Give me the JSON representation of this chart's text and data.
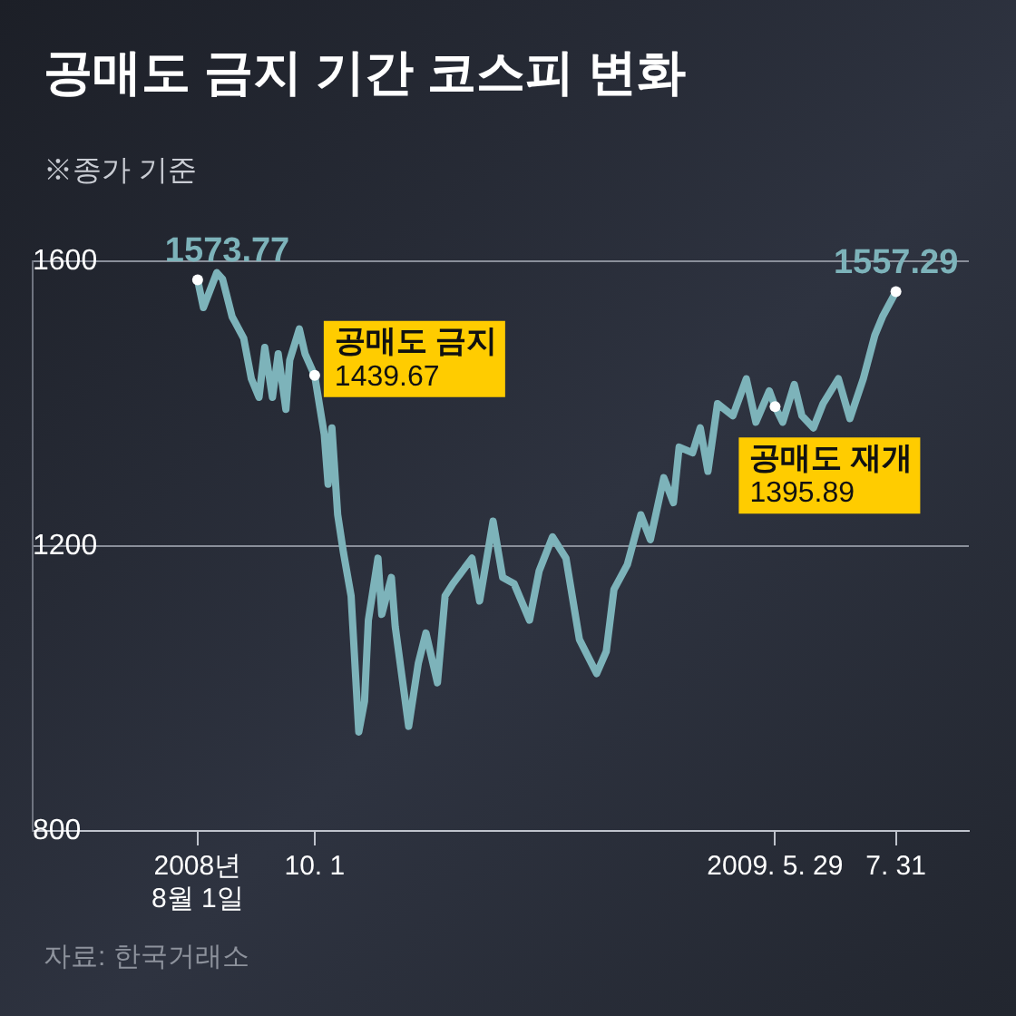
{
  "chart_data": {
    "type": "line",
    "title": "공매도 금지 기간 코스피 변화",
    "subtitle": "※종가 기준",
    "x": [
      "2008-08-01",
      "2008-08-04",
      "2008-08-11",
      "2008-08-14",
      "2008-08-19",
      "2008-08-25",
      "2008-08-29",
      "2008-09-02",
      "2008-09-05",
      "2008-09-09",
      "2008-09-12",
      "2008-09-16",
      "2008-09-18",
      "2008-09-23",
      "2008-09-26",
      "2008-10-01",
      "2008-10-06",
      "2008-10-08",
      "2008-10-10",
      "2008-10-13",
      "2008-10-16",
      "2008-10-20",
      "2008-10-24",
      "2008-10-27",
      "2008-10-29",
      "2008-11-03",
      "2008-11-05",
      "2008-11-10",
      "2008-11-12",
      "2008-11-19",
      "2008-11-24",
      "2008-11-28",
      "2008-12-04",
      "2008-12-08",
      "2008-12-12",
      "2008-12-22",
      "2008-12-26",
      "2009-01-02",
      "2009-01-07",
      "2009-01-13",
      "2009-01-21",
      "2009-01-26",
      "2009-02-02",
      "2009-02-09",
      "2009-02-16",
      "2009-02-25",
      "2009-03-02",
      "2009-03-06",
      "2009-03-13",
      "2009-03-20",
      "2009-03-25",
      "2009-04-01",
      "2009-04-06",
      "2009-04-09",
      "2009-04-16",
      "2009-04-20",
      "2009-04-24",
      "2009-04-29",
      "2009-05-07",
      "2009-05-14",
      "2009-05-19",
      "2009-05-26",
      "2009-05-29",
      "2009-06-02",
      "2009-06-08",
      "2009-06-12",
      "2009-06-18",
      "2009-06-23",
      "2009-07-01",
      "2009-07-07",
      "2009-07-14",
      "2009-07-20",
      "2009-07-24",
      "2009-07-31"
    ],
    "series": [
      {
        "color": "#7db3ba",
        "values": [
          1573.77,
          1535,
          1584,
          1575,
          1522,
          1492,
          1435,
          1409,
          1479,
          1409,
          1470,
          1392,
          1461,
          1505,
          1470,
          1439.67,
          1357,
          1287,
          1366,
          1244,
          1191,
          1130,
          939,
          982,
          1096,
          1183,
          1104,
          1156,
          1087,
          947,
          1035,
          1078,
          1008,
          1130,
          1147,
          1183,
          1123,
          1235,
          1156,
          1147,
          1096,
          1165,
          1213,
          1183,
          1069,
          1021,
          1052,
          1139,
          1174,
          1244,
          1209,
          1296,
          1261,
          1339,
          1331,
          1366,
          1305,
          1400,
          1383,
          1435,
          1374,
          1418,
          1395.89,
          1374,
          1427,
          1383,
          1366,
          1400,
          1435,
          1379,
          1435,
          1496,
          1522,
          1557.29
        ],
        "value_labels": [
          "1573.77",
          null,
          null,
          null,
          null,
          null,
          null,
          null,
          null,
          null,
          null,
          null,
          null,
          null,
          null,
          "1439.67",
          null,
          null,
          null,
          null,
          null,
          null,
          null,
          null,
          null,
          null,
          null,
          null,
          null,
          null,
          null,
          null,
          null,
          null,
          null,
          null,
          null,
          null,
          null,
          null,
          null,
          null,
          null,
          null,
          null,
          null,
          null,
          null,
          null,
          null,
          null,
          null,
          null,
          null,
          null,
          null,
          null,
          null,
          null,
          null,
          null,
          null,
          "1395.89",
          null,
          null,
          null,
          null,
          null,
          null,
          null,
          null,
          null,
          null,
          "1557.29"
        ]
      }
    ],
    "xlim": [
      "2008-05-07",
      "2009-09-07"
    ],
    "xticks": [
      {
        "value": "2008-08-01",
        "label": "2008년\n8월 1일"
      },
      {
        "value": "2008-10-01",
        "label": "10. 1"
      },
      {
        "value": "2009-05-29",
        "label": "2009. 5. 29"
      },
      {
        "value": "2009-07-31",
        "label": "7. 31"
      }
    ],
    "ylim": [
      800,
      1600
    ],
    "yticks": [
      800,
      1200,
      1600
    ],
    "grid": "y",
    "annotations": [
      {
        "text": "공매도 금지",
        "x": "2008-10-01",
        "y": 1439.67
      },
      {
        "text": "공매도 재개",
        "x": "2009-05-29",
        "y": 1395.89
      },
      "자료: 한국거래소"
    ]
  }
}
